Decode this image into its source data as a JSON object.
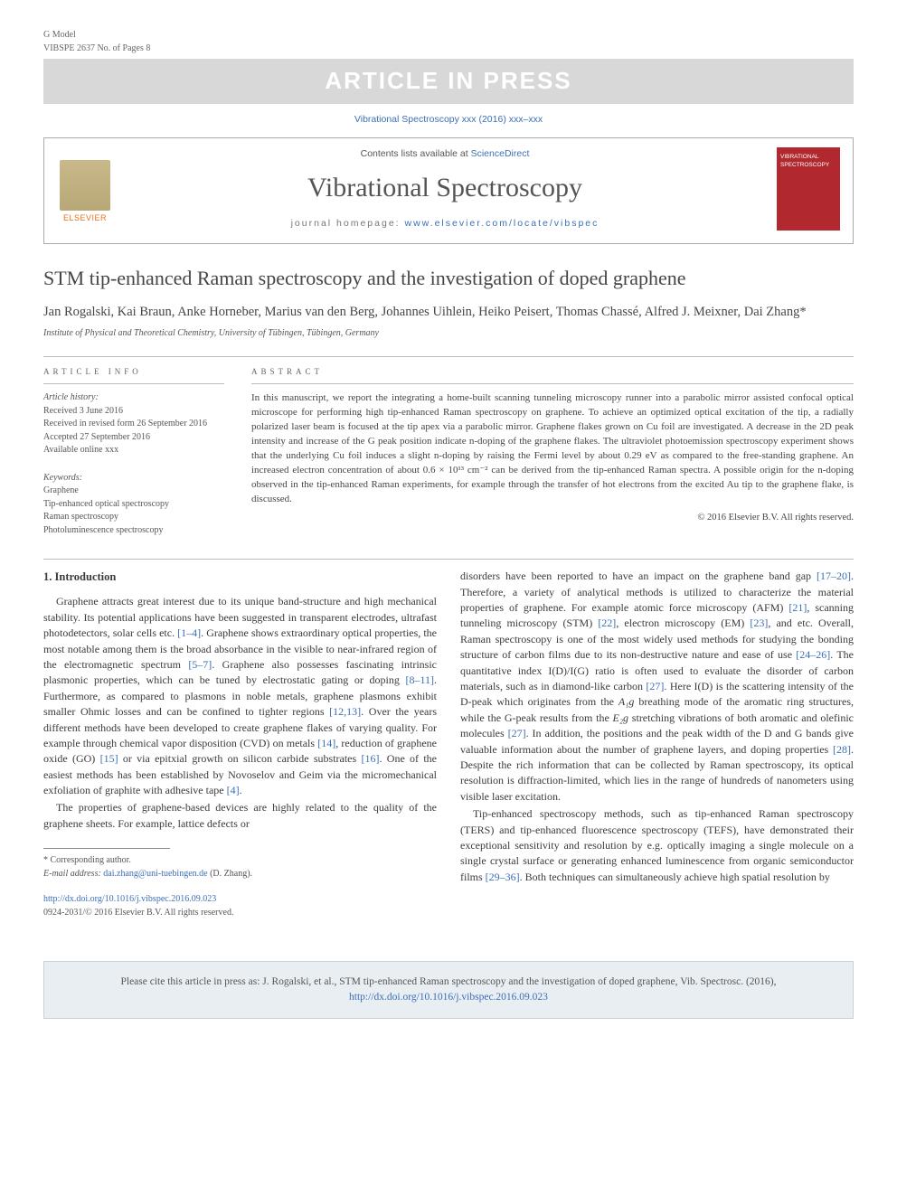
{
  "header": {
    "gmodel": "G Model",
    "gmodel_sub": "VIBSPE 2637 No. of Pages 8",
    "banner": "ARTICLE IN PRESS",
    "journal_ref": "Vibrational Spectroscopy xxx (2016) xxx–xxx",
    "contents_prefix": "Contents lists available at ",
    "contents_link": "ScienceDirect",
    "journal_name": "Vibrational Spectroscopy",
    "homepage_prefix": "journal homepage: ",
    "homepage_link": "www.elsevier.com/locate/vibspec",
    "elsevier": "ELSEVIER",
    "cover_text": "VIBRATIONAL SPECTROSCOPY"
  },
  "article": {
    "title": "STM tip-enhanced Raman spectroscopy and the investigation of doped graphene",
    "authors": "Jan Rogalski, Kai Braun, Anke Horneber, Marius van den Berg, Johannes Uihlein, Heiko Peisert, Thomas Chassé, Alfred J. Meixner, Dai Zhang",
    "corr_mark": "*",
    "affiliation": "Institute of Physical and Theoretical Chemistry, University of Tübingen, Tübingen, Germany"
  },
  "info": {
    "label": "ARTICLE INFO",
    "history_label": "Article history:",
    "received": "Received 3 June 2016",
    "revised": "Received in revised form 26 September 2016",
    "accepted": "Accepted 27 September 2016",
    "online": "Available online xxx",
    "kw_label": "Keywords:",
    "keywords": [
      "Graphene",
      "Tip-enhanced optical spectroscopy",
      "Raman spectroscopy",
      "Photoluminescence spectroscopy"
    ]
  },
  "abstract": {
    "label": "ABSTRACT",
    "text": "In this manuscript, we report the integrating a home-built scanning tunneling microscopy runner into a parabolic mirror assisted confocal optical microscope for performing high tip-enhanced Raman spectroscopy on graphene. To achieve an optimized optical excitation of the tip, a radially polarized laser beam is focused at the tip apex via a parabolic mirror. Graphene flakes grown on Cu foil are investigated. A decrease in the 2D peak intensity and increase of the G peak position indicate n-doping of the graphene flakes. The ultraviolet photoemission spectroscopy experiment shows that the underlying Cu foil induces a slight n-doping by raising the Fermi level by about 0.29 eV as compared to the free-standing graphene. An increased electron concentration of about 0.6 × 10¹³ cm⁻² can be derived from the tip-enhanced Raman spectra. A possible origin for the n-doping observed in the tip-enhanced Raman experiments, for example through the transfer of hot electrons from the excited Au tip to the graphene flake, is discussed.",
    "copyright": "© 2016 Elsevier B.V. All rights reserved."
  },
  "body": {
    "section_heading": "1. Introduction",
    "col1_p1a": "Graphene attracts great interest due to its unique band-structure and high mechanical stability. Its potential applications have been suggested in transparent electrodes, ultrafast photodetectors, solar cells etc. ",
    "ref_1_4": "[1–4]",
    "col1_p1b": ". Graphene shows extraordinary optical properties, the most notable among them is the broad absorbance in the visible to near-infrared region of the electromagnetic spectrum ",
    "ref_5_7": "[5–7]",
    "col1_p1c": ". Graphene also possesses fascinating intrinsic plasmonic properties, which can be tuned by electrostatic gating or doping ",
    "ref_8_11": "[8–11]",
    "col1_p1d": ". Furthermore, as compared to plasmons in noble metals, graphene plasmons exhibit smaller Ohmic losses and can be confined to tighter regions ",
    "ref_12_13": "[12,13]",
    "col1_p1e": ". Over the years different methods have been developed to create graphene flakes of varying quality. For example through chemical vapor disposition (CVD) on metals ",
    "ref_14": "[14]",
    "col1_p1f": ", reduction of graphene oxide (GO) ",
    "ref_15": "[15]",
    "col1_p1g": " or via epitxial growth on silicon carbide substrates ",
    "ref_16": "[16]",
    "col1_p1h": ". One of the easiest methods has been established by Novoselov and Geim via the micromechanical exfoliation of graphite with adhesive tape ",
    "ref_4": "[4]",
    "col1_p1i": ".",
    "col1_p2": "The properties of graphene-based devices are highly related to the quality of the graphene sheets. For example, lattice defects or",
    "col2_p1a": "disorders have been reported to have an impact on the graphene band gap ",
    "ref_17_20": "[17–20]",
    "col2_p1b": ". Therefore, a variety of analytical methods is utilized to characterize the material properties of graphene. For example atomic force microscopy (AFM) ",
    "ref_21": "[21]",
    "col2_p1c": ", scanning tunneling microscopy (STM) ",
    "ref_22": "[22]",
    "col2_p1d": ", electron microscopy (EM) ",
    "ref_23": "[23]",
    "col2_p1e": ", and etc. Overall, Raman spectroscopy is one of the most widely used methods for studying the bonding structure of carbon films due to its non-destructive nature and ease of use ",
    "ref_24_26": "[24–26]",
    "col2_p1f": ". The quantitative index I(D)/I(G) ratio is often used to evaluate the disorder of carbon materials, such as in diamond-like carbon ",
    "ref_27": "[27]",
    "col2_p1g": ". Here I(D) is the scattering intensity of the D-peak which originates from the ",
    "a1g": "A₁g",
    "col2_p1g2": " breathing mode of the aromatic ring structures, while the G-peak results from the ",
    "e2g": "E₂g",
    "col2_p1h": " stretching vibrations of both aromatic and olefinic molecules ",
    "ref_27b": "[27]",
    "col2_p1i": ". In addition, the positions and the peak width of the D and G bands give valuable information about the number of graphene layers, and doping properties ",
    "ref_28": "[28]",
    "col2_p1j": ". Despite the rich information that can be collected by Raman spectroscopy, its optical resolution is diffraction-limited, which lies in the range of hundreds of nanometers using visible laser excitation.",
    "col2_p2a": "Tip-enhanced spectroscopy methods, such as tip-enhanced Raman spectroscopy (TERS) and tip-enhanced fluorescence spectroscopy (TEFS), have demonstrated their exceptional sensitivity and resolution by e.g. optically imaging a single molecule on a single crystal surface or generating enhanced luminescence from organic semiconductor films ",
    "ref_29_36": "[29–36]",
    "col2_p2b": ". Both techniques can simultaneously achieve high spatial resolution by"
  },
  "footnote": {
    "corr": "* Corresponding author.",
    "email_label": "E-mail address: ",
    "email": "dai.zhang@uni-tuebingen.de",
    "email_suffix": " (D. Zhang)."
  },
  "footer": {
    "doi": "http://dx.doi.org/10.1016/j.vibspec.2016.09.023",
    "issn": "0924-2031/© 2016 Elsevier B.V. All rights reserved."
  },
  "citebox": {
    "prefix": "Please cite this article in press as: J. Rogalski, et al., STM tip-enhanced Raman spectroscopy and the investigation of doped graphene, Vib. Spectrosc. (2016), ",
    "link": "http://dx.doi.org/10.1016/j.vibspec.2016.09.023"
  }
}
